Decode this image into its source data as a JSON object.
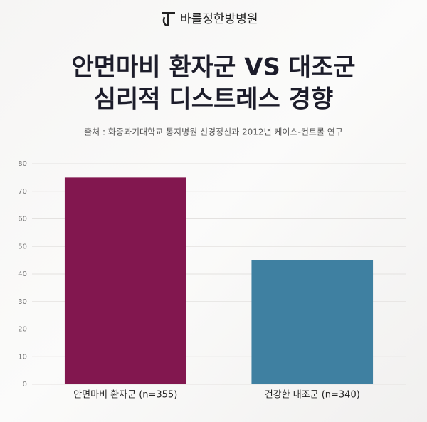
{
  "brand": "바를정한방병원",
  "chart_data": {
    "type": "bar",
    "title": [
      "안면마비 환자군 VS 대조군",
      "심리적 디스트레스 경향"
    ],
    "subtitle": "출처 : 화중과기대학교 통지병원 신경정신과 2012년 케이스-컨트롤 연구",
    "categories": [
      "안면마비 환자군 (n=355)",
      "건강한 대조군 (n=340)"
    ],
    "values": [
      75,
      45
    ],
    "colors": [
      "#82174f",
      "#3f80a1"
    ],
    "ylim": [
      0,
      80
    ],
    "yticks": [
      0,
      10,
      20,
      30,
      40,
      50,
      60,
      70,
      80
    ],
    "grid": true
  }
}
